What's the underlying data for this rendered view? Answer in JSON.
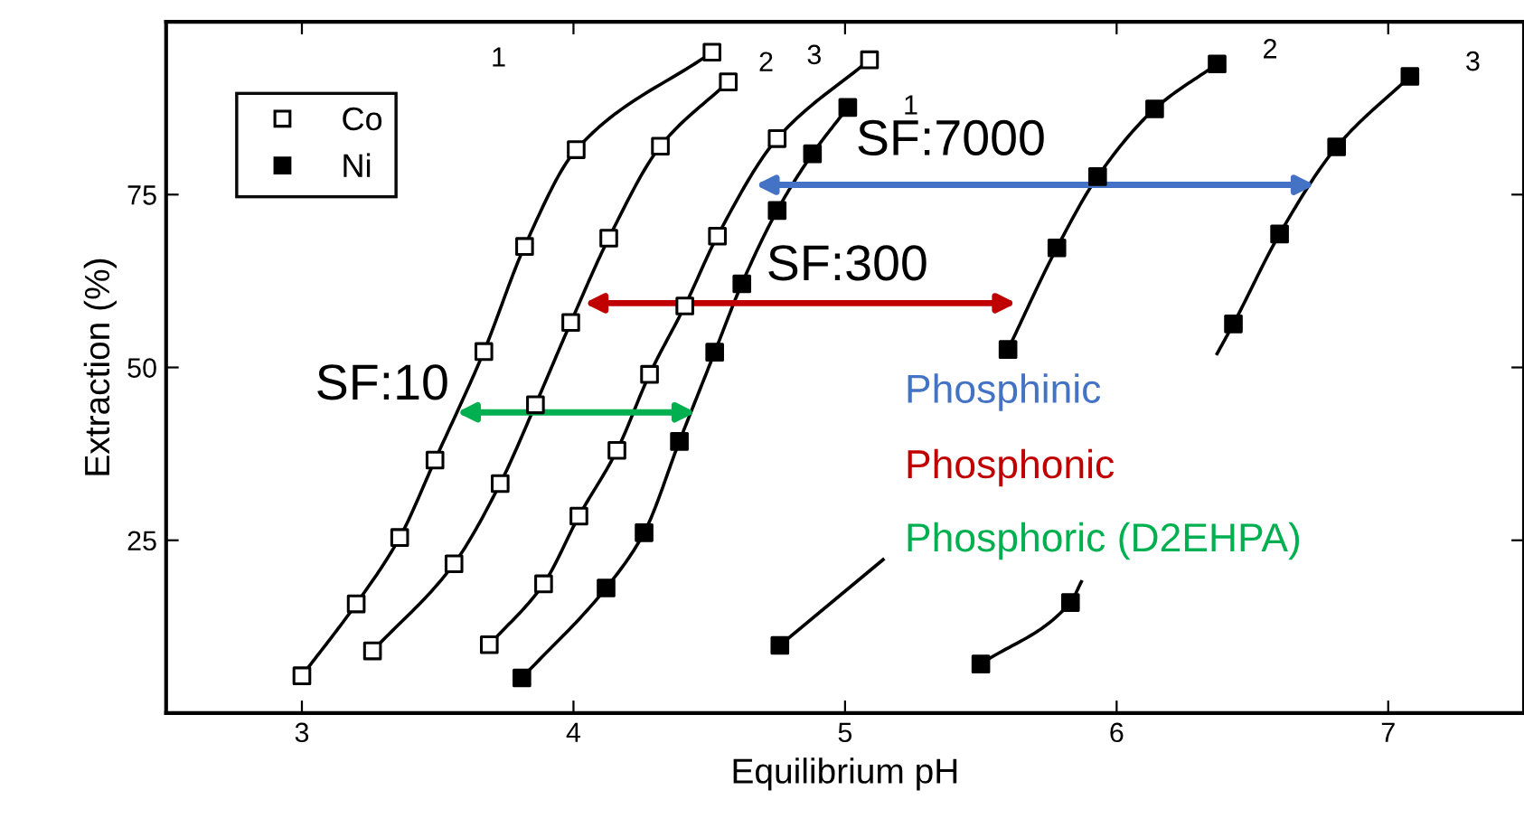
{
  "chart_data": {
    "type": "line",
    "xlabel": "Equilibrium pH",
    "ylabel": "Extraction (%)",
    "xlim": [
      2.5,
      7.5
    ],
    "xticks": [
      3,
      4,
      5,
      6,
      7
    ],
    "ylim": [
      0,
      100
    ],
    "yticks": [
      25,
      50,
      75
    ],
    "grid": false,
    "legend": "top left",
    "marker": "square",
    "line_style": "solid",
    "series": [
      {
        "name": "Co",
        "color": "#000000",
        "colors": [
          "#ffffff",
          "#ffffff",
          "#ffffff",
          "#ffffff",
          "#ffffff",
          "#ffffff",
          "#ffffff",
          "#ffffff"
        ],
        "x": [
          3.0,
          3.2,
          3.36,
          3.49,
          3.67,
          3.82,
          4.01,
          4.51
        ],
        "values": [
          5.4,
          15.8,
          25.4,
          36.6,
          52.3,
          67.5,
          81.5,
          95.6
        ]
      },
      {
        "color": "#000000",
        "colors": [
          "#ffffff",
          "#ffffff",
          "#ffffff",
          "#ffffff",
          "#ffffff",
          "#ffffff",
          "#ffffff",
          "#ffffff"
        ],
        "x": [
          3.26,
          3.56,
          3.73,
          3.86,
          3.99,
          4.13,
          4.32,
          4.57
        ],
        "values": [
          9.0,
          21.6,
          33.2,
          44.6,
          56.5,
          68.7,
          82.0,
          91.3
        ]
      },
      {
        "color": "#000000",
        "colors": [
          "#ffffff",
          "#ffffff",
          "#ffffff",
          "#ffffff",
          "#ffffff",
          "#ffffff",
          "#ffffff",
          "#ffffff",
          "#ffffff"
        ],
        "x": [
          3.69,
          3.89,
          4.02,
          4.16,
          4.28,
          4.41,
          4.53,
          4.75,
          5.09
        ],
        "values": [
          9.9,
          18.7,
          28.5,
          38.0,
          49.0,
          58.9,
          69.0,
          83.1,
          94.5
        ]
      },
      {
        "name": "Ni",
        "color": "#000000",
        "x": [
          3.81,
          4.12,
          4.26,
          4.39,
          4.52,
          4.62,
          4.75,
          4.88,
          5.01
        ],
        "values": [
          5.1,
          18.1,
          26.1,
          39.3,
          52.2,
          62.1,
          72.7,
          80.9,
          87.6
        ]
      },
      {
        "color": "#000000",
        "colors": [
          "#000000",
          null,
          null,
          "#000000",
          "#000000",
          "#000000",
          "#000000",
          "#000000"
        ],
        "x": [
          4.76,
          5.14,
          5.37,
          5.6,
          5.78,
          5.93,
          6.14,
          6.37
        ],
        "values": [
          9.8,
          22.2,
          null,
          52.6,
          67.3,
          77.6,
          87.4,
          93.9
        ]
      },
      {
        "color": "#000000",
        "colors": [
          "#000000",
          "#000000",
          null,
          null,
          null,
          "#000000",
          "#000000",
          "#000000",
          "#000000"
        ],
        "x": [
          5.5,
          5.83,
          5.87,
          6.1,
          6.37,
          6.43,
          6.6,
          6.81,
          7.08
        ],
        "values": [
          7.1,
          16.0,
          19.0,
          null,
          52.0,
          56.3,
          69.3,
          81.9,
          92.1
        ]
      }
    ],
    "annotations": [
      "SF:7000",
      "SF:300",
      {
        "text": "SF:10",
        "x": 3.57,
        "y": 43.5
      },
      "1",
      "2",
      "3",
      "1",
      "2",
      "3",
      "Phosphinic",
      "Phosphonic",
      "Phosphoric (D2EHPA)"
    ]
  }
}
